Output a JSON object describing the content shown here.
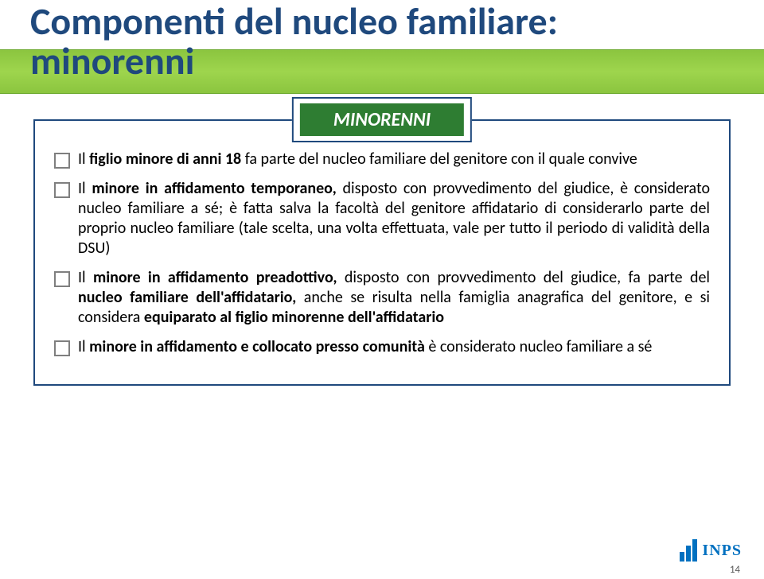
{
  "colors": {
    "title_text": "#1f497d",
    "band_gradient_top": "#8bc53f",
    "band_gradient_mid": "#9ed54d",
    "band_border": "#6aa82c",
    "badge_bg": "#2e7d32",
    "badge_text": "#ffffff",
    "box_border": "#1f497d",
    "bullet_border": "#7f7f7f",
    "body_text": "#000000",
    "logo_color": "#0070c0",
    "pagenum_color": "#595959"
  },
  "typography": {
    "title_fontsize": 48,
    "title_weight": 700,
    "badge_fontsize": 24,
    "body_fontsize": 20,
    "logo_fontsize": 20,
    "pagenum_fontsize": 13,
    "font_family": "Calibri"
  },
  "title": {
    "line1": "Componenti del nucleo familiare:",
    "line2": "minorenni"
  },
  "badge": "MINORENNI",
  "bullets": [
    {
      "segments": [
        {
          "text": "Il ",
          "bold": false
        },
        {
          "text": "figlio minore di anni 18",
          "bold": true
        },
        {
          "text": " fa parte del nucleo familiare del genitore con il quale convive",
          "bold": false
        }
      ]
    },
    {
      "segments": [
        {
          "text": "Il ",
          "bold": false
        },
        {
          "text": "minore in affidamento temporaneo,",
          "bold": true
        },
        {
          "text": " disposto con provvedimento del giudice, è considerato nucleo familiare a sé; è fatta salva la facoltà del genitore affidatario di considerarlo parte del proprio nucleo familiare (tale scelta, una volta effettuata, vale per tutto il periodo di validità della DSU)",
          "bold": false
        }
      ]
    },
    {
      "segments": [
        {
          "text": "Il ",
          "bold": false
        },
        {
          "text": "minore in affidamento preadottivo,",
          "bold": true
        },
        {
          "text": " disposto con provvedimento del giudice, fa parte del ",
          "bold": false
        },
        {
          "text": "nucleo familiare dell'affidatario,",
          "bold": true
        },
        {
          "text": " anche se risulta nella famiglia anagrafica del genitore, e si considera ",
          "bold": false
        },
        {
          "text": "equiparato al figlio minorenne dell'affidatario",
          "bold": true
        }
      ]
    },
    {
      "segments": [
        {
          "text": "Il ",
          "bold": false
        },
        {
          "text": "minore in affidamento e collocato presso comunità",
          "bold": true
        },
        {
          "text": " è considerato nucleo familiare a sé",
          "bold": false
        }
      ]
    }
  ],
  "logo_text": "INPS",
  "page_number": "14"
}
